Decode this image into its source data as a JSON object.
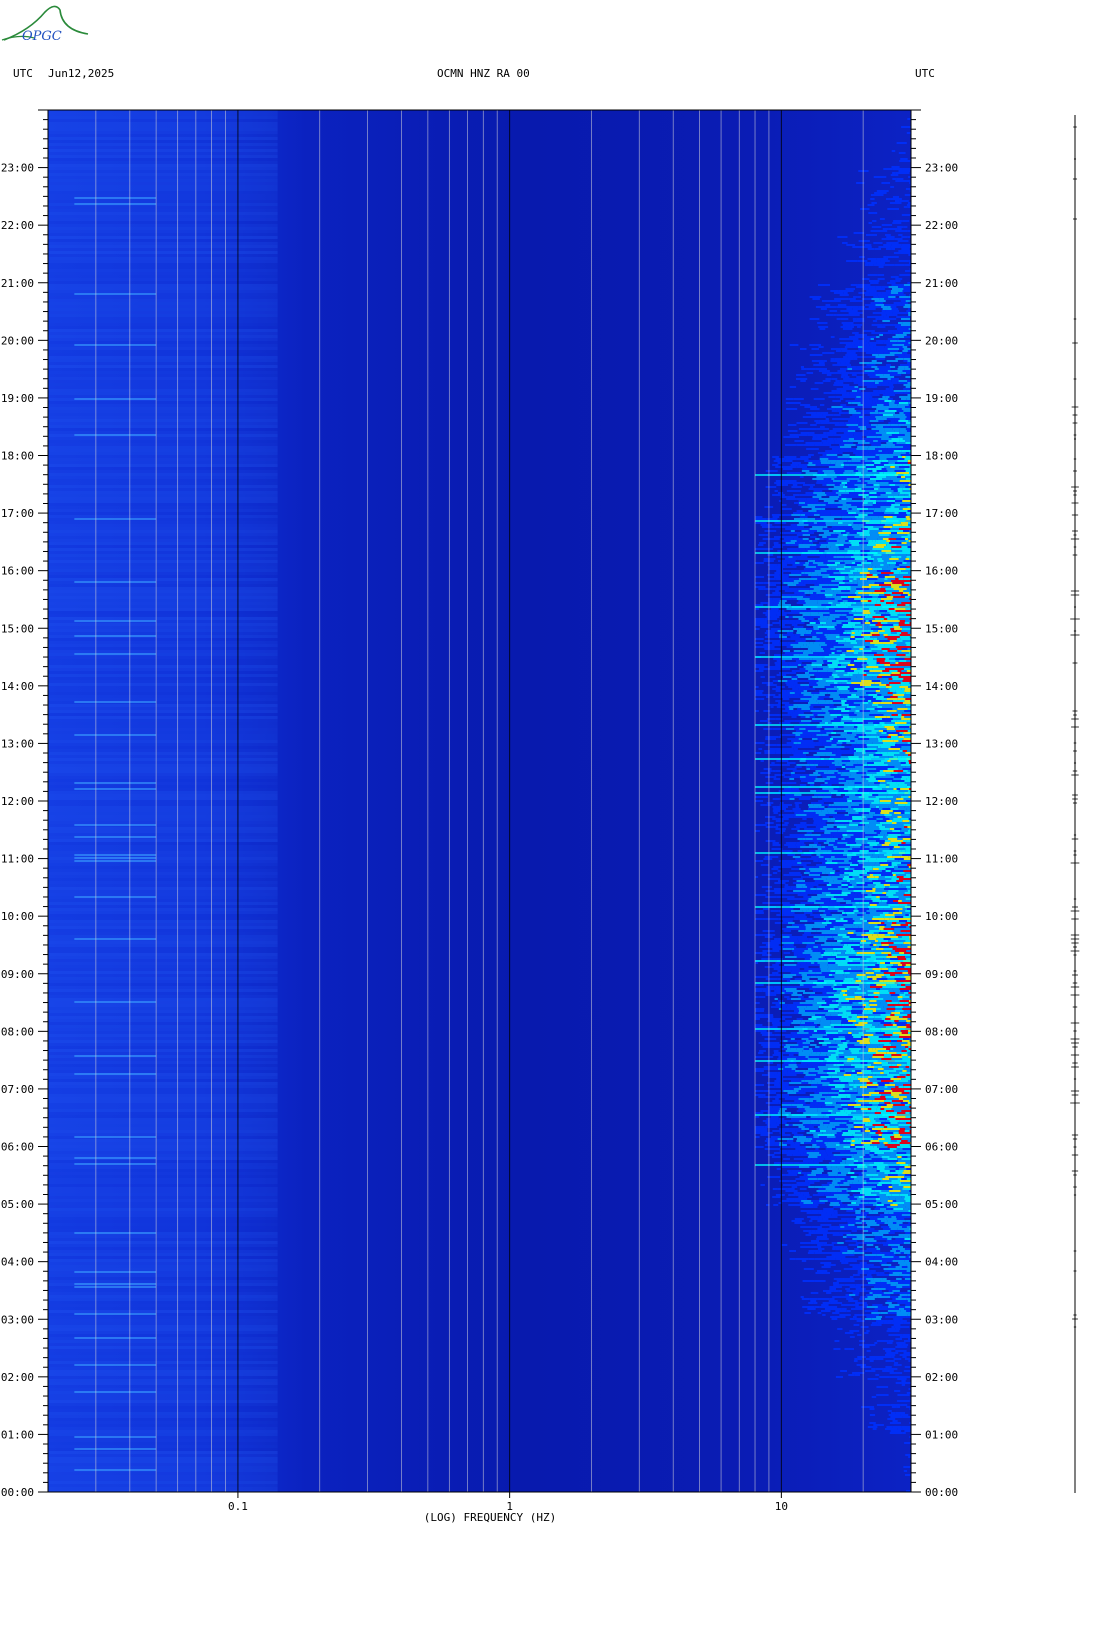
{
  "header": {
    "left_tz": "UTC",
    "date": "Jun12,2025",
    "station": "OCMN HNZ RA 00",
    "right_tz": "UTC"
  },
  "logo": {
    "text": "OPGC",
    "color": "#2a8a3a"
  },
  "chart_data": {
    "type": "heatmap",
    "title": "OCMN HNZ RA 00",
    "xlabel": "(LOG) FREQUENCY (HZ)",
    "ylabel": "",
    "x_scale": "log",
    "xlim": [
      0.02,
      30
    ],
    "x_ticks": [
      {
        "value": 0.1,
        "label": "0.1"
      },
      {
        "value": 1,
        "label": "1"
      },
      {
        "value": 10,
        "label": "10"
      }
    ],
    "y_unit": "hour UTC",
    "ylim": [
      0,
      24
    ],
    "y_ticks": [
      {
        "value": 0,
        "label": "00:00"
      },
      {
        "value": 1,
        "label": "01:00"
      },
      {
        "value": 2,
        "label": "02:00"
      },
      {
        "value": 3,
        "label": "03:00"
      },
      {
        "value": 4,
        "label": "04:00"
      },
      {
        "value": 5,
        "label": "05:00"
      },
      {
        "value": 6,
        "label": "06:00"
      },
      {
        "value": 7,
        "label": "07:00"
      },
      {
        "value": 8,
        "label": "08:00"
      },
      {
        "value": 9,
        "label": "09:00"
      },
      {
        "value": 10,
        "label": "10:00"
      },
      {
        "value": 11,
        "label": "11:00"
      },
      {
        "value": 12,
        "label": "12:00"
      },
      {
        "value": 13,
        "label": "13:00"
      },
      {
        "value": 14,
        "label": "14:00"
      },
      {
        "value": 15,
        "label": "15:00"
      },
      {
        "value": 16,
        "label": "16:00"
      },
      {
        "value": 17,
        "label": "17:00"
      },
      {
        "value": 18,
        "label": "18:00"
      },
      {
        "value": 19,
        "label": "19:00"
      },
      {
        "value": 20,
        "label": "20:00"
      },
      {
        "value": 21,
        "label": "21:00"
      },
      {
        "value": 22,
        "label": "22:00"
      },
      {
        "value": 23,
        "label": "23:00"
      }
    ],
    "grid": true,
    "colormap": [
      "#0a10a0",
      "#0030ff",
      "#00a0ff",
      "#00ffff",
      "#ffff00",
      "#ff0000"
    ],
    "hf_activity_by_hour": [
      0.25,
      0.3,
      0.35,
      0.5,
      0.55,
      0.75,
      0.95,
      0.95,
      0.95,
      0.9,
      0.85,
      0.8,
      0.8,
      0.85,
      0.95,
      0.95,
      0.85,
      0.75,
      0.6,
      0.5,
      0.45,
      0.35,
      0.3,
      0.25
    ]
  }
}
